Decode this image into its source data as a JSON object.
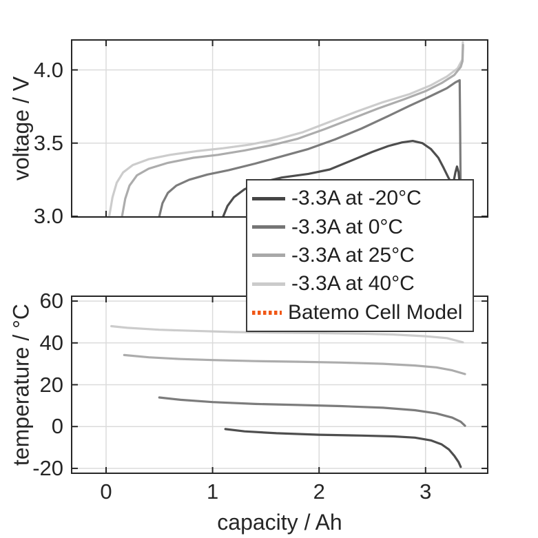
{
  "figure": {
    "background": "#ffffff",
    "axis_color": "#262626",
    "grid_color": "#dbdbdb",
    "text_color": "#262626"
  },
  "chart_data": [
    {
      "type": "line",
      "panel": "top",
      "title": "",
      "xlabel": "",
      "ylabel": "voltage / V",
      "xlim": [
        -0.317,
        3.577
      ],
      "ylim": [
        3.0,
        4.2
      ],
      "xticks": [
        0,
        1,
        2,
        3
      ],
      "xtick_labels": [
        "0",
        "1",
        "2",
        "3"
      ],
      "show_xtick_labels": false,
      "yticks": [
        3.0,
        3.5,
        4.0
      ],
      "ytick_labels": [
        "3.0",
        "3.5",
        "4.0"
      ],
      "grid": true,
      "series": [
        {
          "name": "-3.3A at 40°C",
          "color": "#c9c9c9",
          "points": [
            [
              0.03,
              3.0
            ],
            [
              0.06,
              3.13
            ],
            [
              0.1,
              3.23
            ],
            [
              0.16,
              3.3
            ],
            [
              0.25,
              3.35
            ],
            [
              0.4,
              3.39
            ],
            [
              0.6,
              3.42
            ],
            [
              0.85,
              3.445
            ],
            [
              1.1,
              3.465
            ],
            [
              1.35,
              3.49
            ],
            [
              1.6,
              3.525
            ],
            [
              1.85,
              3.575
            ],
            [
              2.1,
              3.645
            ],
            [
              2.35,
              3.715
            ],
            [
              2.6,
              3.78
            ],
            [
              2.85,
              3.835
            ],
            [
              3.05,
              3.895
            ],
            [
              3.2,
              3.955
            ],
            [
              3.3,
              4.01
            ],
            [
              3.345,
              4.07
            ],
            [
              3.35,
              4.19
            ]
          ]
        },
        {
          "name": "-3.3A at 25°C",
          "color": "#a8a8a8",
          "points": [
            [
              0.15,
              3.0
            ],
            [
              0.18,
              3.12
            ],
            [
              0.22,
              3.21
            ],
            [
              0.29,
              3.28
            ],
            [
              0.4,
              3.325
            ],
            [
              0.58,
              3.365
            ],
            [
              0.82,
              3.4
            ],
            [
              1.05,
              3.42
            ],
            [
              1.3,
              3.45
            ],
            [
              1.55,
              3.485
            ],
            [
              1.8,
              3.53
            ],
            [
              2.05,
              3.595
            ],
            [
              2.3,
              3.665
            ],
            [
              2.55,
              3.735
            ],
            [
              2.8,
              3.8
            ],
            [
              3.0,
              3.855
            ],
            [
              3.15,
              3.91
            ],
            [
              3.27,
              3.965
            ],
            [
              3.33,
              4.02
            ],
            [
              3.347,
              4.06
            ],
            [
              3.352,
              4.17
            ]
          ]
        },
        {
          "name": "-3.3A at 0°C",
          "color": "#757575",
          "points": [
            [
              0.5,
              3.0
            ],
            [
              0.53,
              3.09
            ],
            [
              0.58,
              3.16
            ],
            [
              0.66,
              3.21
            ],
            [
              0.78,
              3.25
            ],
            [
              0.95,
              3.285
            ],
            [
              1.15,
              3.315
            ],
            [
              1.4,
              3.36
            ],
            [
              1.65,
              3.41
            ],
            [
              1.9,
              3.46
            ],
            [
              2.15,
              3.525
            ],
            [
              2.4,
              3.6
            ],
            [
              2.65,
              3.685
            ],
            [
              2.85,
              3.755
            ],
            [
              3.0,
              3.805
            ],
            [
              3.1,
              3.84
            ],
            [
              3.2,
              3.875
            ],
            [
              3.28,
              3.915
            ],
            [
              3.32,
              3.93
            ],
            [
              3.325,
              3.6
            ],
            [
              3.33,
              3.12
            ]
          ]
        },
        {
          "name": "-3.3A at -20°C",
          "color": "#454545",
          "points": [
            [
              1.1,
              3.0
            ],
            [
              1.14,
              3.07
            ],
            [
              1.2,
              3.13
            ],
            [
              1.3,
              3.185
            ],
            [
              1.45,
              3.23
            ],
            [
              1.65,
              3.265
            ],
            [
              1.9,
              3.29
            ],
            [
              2.1,
              3.32
            ],
            [
              2.3,
              3.38
            ],
            [
              2.5,
              3.44
            ],
            [
              2.65,
              3.48
            ],
            [
              2.78,
              3.505
            ],
            [
              2.88,
              3.515
            ],
            [
              2.97,
              3.5
            ],
            [
              3.05,
              3.46
            ],
            [
              3.12,
              3.4
            ],
            [
              3.17,
              3.33
            ],
            [
              3.21,
              3.27
            ],
            [
              3.24,
              3.23
            ],
            [
              3.26,
              3.225
            ],
            [
              3.28,
              3.3
            ],
            [
              3.295,
              3.34
            ],
            [
              3.31,
              3.3
            ],
            [
              3.32,
              3.22
            ],
            [
              3.325,
              3.08
            ]
          ]
        }
      ]
    },
    {
      "type": "line",
      "panel": "bottom",
      "title": "",
      "xlabel": "capacity / Ah",
      "ylabel": "temperature / °C",
      "xlim": [
        -0.317,
        3.577
      ],
      "ylim": [
        -22,
        62
      ],
      "xticks": [
        0,
        1,
        2,
        3
      ],
      "xtick_labels": [
        "0",
        "1",
        "2",
        "3"
      ],
      "show_xtick_labels": true,
      "yticks": [
        -20,
        0,
        20,
        40,
        60
      ],
      "ytick_labels": [
        "-20",
        "0",
        "20",
        "40",
        "60"
      ],
      "grid": true,
      "series": [
        {
          "name": "-3.3A at 40°C",
          "color": "#c9c9c9",
          "points": [
            [
              0.05,
              48.0
            ],
            [
              0.2,
              47.2
            ],
            [
              0.5,
              46.3
            ],
            [
              0.8,
              45.8
            ],
            [
              1.2,
              45.2
            ],
            [
              1.6,
              44.9
            ],
            [
              2.0,
              44.7
            ],
            [
              2.4,
              44.4
            ],
            [
              2.7,
              44.0
            ],
            [
              3.0,
              43.2
            ],
            [
              3.2,
              42.3
            ],
            [
              3.35,
              40.3
            ]
          ]
        },
        {
          "name": "-3.3A at 25°C",
          "color": "#a8a8a8",
          "points": [
            [
              0.17,
              34.2
            ],
            [
              0.4,
              33.1
            ],
            [
              0.7,
              32.3
            ],
            [
              1.0,
              31.8
            ],
            [
              1.4,
              31.3
            ],
            [
              1.8,
              31.0
            ],
            [
              2.2,
              30.6
            ],
            [
              2.6,
              30.0
            ],
            [
              2.9,
              29.2
            ],
            [
              3.1,
              28.3
            ],
            [
              3.25,
              26.9
            ],
            [
              3.37,
              25.1
            ]
          ]
        },
        {
          "name": "-3.3A at 0°C",
          "color": "#757575",
          "points": [
            [
              0.5,
              13.9
            ],
            [
              0.7,
              12.8
            ],
            [
              1.0,
              11.7
            ],
            [
              1.4,
              10.8
            ],
            [
              1.8,
              10.3
            ],
            [
              2.2,
              9.8
            ],
            [
              2.6,
              9.0
            ],
            [
              2.9,
              7.8
            ],
            [
              3.1,
              6.3
            ],
            [
              3.25,
              4.3
            ],
            [
              3.33,
              2.3
            ],
            [
              3.37,
              0.4
            ]
          ]
        },
        {
          "name": "-3.3A at -20°C",
          "color": "#454545",
          "points": [
            [
              1.12,
              -1.2
            ],
            [
              1.3,
              -2.3
            ],
            [
              1.6,
              -3.2
            ],
            [
              2.0,
              -3.9
            ],
            [
              2.4,
              -4.3
            ],
            [
              2.7,
              -4.7
            ],
            [
              2.9,
              -5.3
            ],
            [
              3.05,
              -6.6
            ],
            [
              3.15,
              -8.5
            ],
            [
              3.22,
              -11.0
            ],
            [
              3.27,
              -14.0
            ],
            [
              3.31,
              -17.0
            ],
            [
              3.33,
              -19.3
            ]
          ]
        }
      ]
    }
  ],
  "legend": {
    "border_color": "#3a3a3a",
    "background": "#ffffff",
    "entries": [
      {
        "label": "-3.3A at -20°C",
        "color": "#454545",
        "style": "solid"
      },
      {
        "label": "-3.3A at 0°C",
        "color": "#757575",
        "style": "solid"
      },
      {
        "label": "-3.3A at 25°C",
        "color": "#a8a8a8",
        "style": "solid"
      },
      {
        "label": "-3.3A at 40°C",
        "color": "#cbcbcb",
        "style": "solid"
      },
      {
        "label": "Batemo Cell Model",
        "color": "#f05716",
        "style": "dotted"
      }
    ]
  }
}
